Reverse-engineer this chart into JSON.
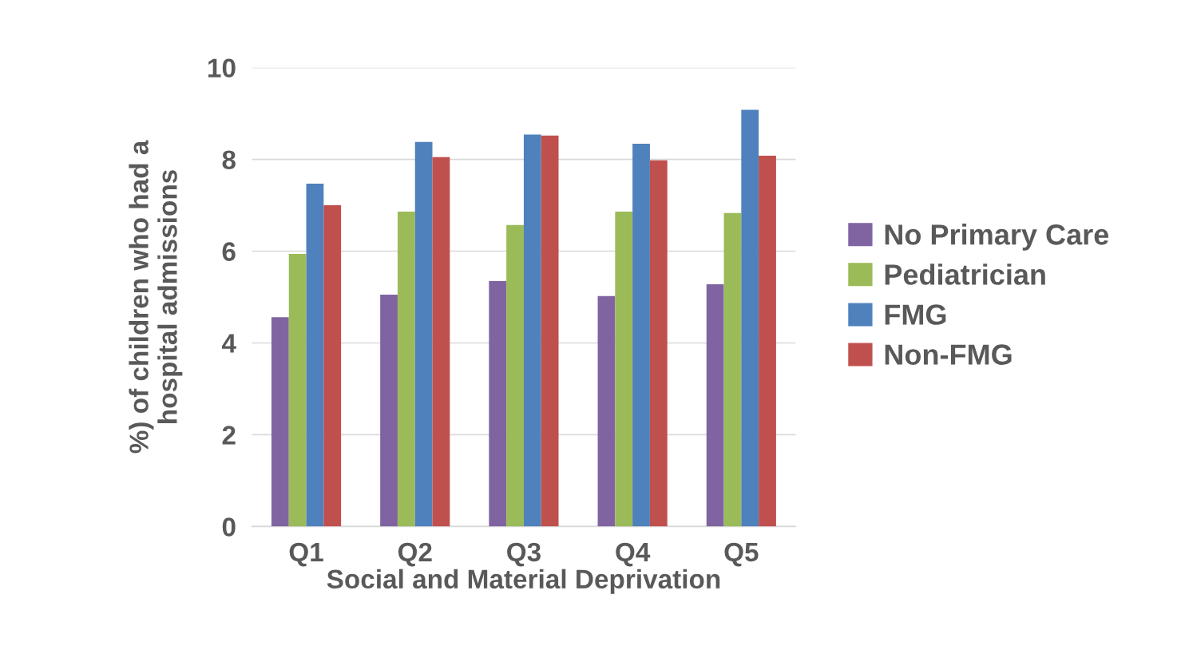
{
  "chart_data": {
    "type": "bar",
    "xlabel": "Social and Material Deprivation",
    "ylabel": "%) of children who had a\nhospital admissions",
    "categories": [
      "Q1",
      "Q2",
      "Q3",
      "Q4",
      "Q5"
    ],
    "series": [
      {
        "name": "No Primary Care",
        "color": "#8064a2",
        "values": [
          4.56,
          5.05,
          5.35,
          5.02,
          5.28
        ]
      },
      {
        "name": "Pediatrician",
        "color": "#9bbb59",
        "values": [
          5.94,
          6.86,
          6.57,
          6.86,
          6.83
        ]
      },
      {
        "name": "FMG",
        "color": "#4f81bd",
        "values": [
          7.47,
          8.38,
          8.54,
          8.34,
          9.08
        ]
      },
      {
        "name": "Non-FMG",
        "color": "#c0504d",
        "values": [
          7.0,
          8.05,
          8.52,
          7.98,
          8.08
        ]
      }
    ],
    "ylim": [
      0,
      10
    ],
    "yticks": [
      0,
      2,
      4,
      6,
      8,
      10
    ],
    "grid": "y",
    "legend": "right"
  }
}
